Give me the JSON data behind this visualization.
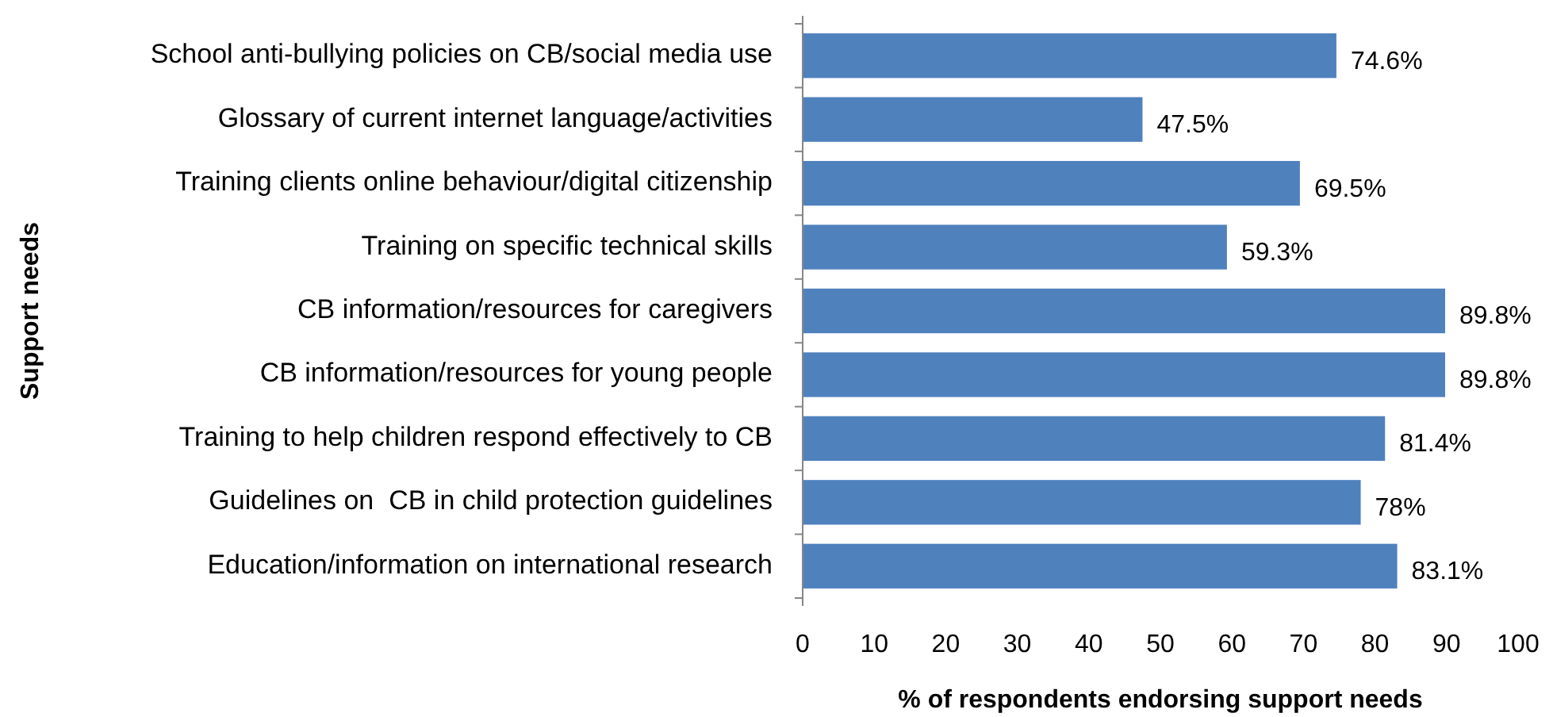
{
  "chart_data": {
    "type": "bar",
    "orientation": "horizontal",
    "xlabel": "% of respondents endorsing support needs",
    "ylabel": "Support needs",
    "categories": [
      "School anti-bullying policies on CB/social media use",
      "Glossary of current internet language/activities",
      "Training clients online behaviour/digital citizenship",
      "Training on specific technical skills",
      "CB information/resources for caregivers",
      "CB information/resources for young people",
      "Training to help children respond effectively to CB",
      "Guidelines on  CB in child protection guidelines",
      "Education/information on international research"
    ],
    "values": [
      74.6,
      47.5,
      69.5,
      59.3,
      89.8,
      89.8,
      81.4,
      78,
      83.1
    ],
    "value_labels": [
      "74.6%",
      "47.5%",
      "69.5%",
      "59.3%",
      "89.8%",
      "89.8%",
      "81.4%",
      "78%",
      "83.1%"
    ],
    "color": "#4f81bd",
    "xlim": [
      0,
      100
    ],
    "xticks": [
      0,
      10,
      20,
      30,
      40,
      50,
      60,
      70,
      80,
      90,
      100
    ],
    "grid": false
  }
}
